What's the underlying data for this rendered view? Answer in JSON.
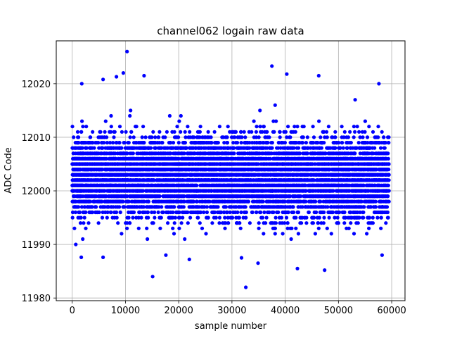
{
  "chart_data": {
    "type": "scatter",
    "title": "channel062 logain raw data",
    "xlabel": "sample number",
    "ylabel": "ADC Code",
    "xlim": [
      -3000,
      62500
    ],
    "ylim": [
      11979.5,
      12028
    ],
    "x_ticks": [
      0,
      10000,
      20000,
      30000,
      40000,
      50000,
      60000
    ],
    "x_tick_labels": [
      "0",
      "10000",
      "20000",
      "30000",
      "40000",
      "50000",
      "60000"
    ],
    "y_ticks": [
      11980,
      11990,
      12000,
      12010,
      12020
    ],
    "y_tick_labels": [
      "11980",
      "11990",
      "12000",
      "12010",
      "12020"
    ],
    "grid": true,
    "marker_color": "#0000ff",
    "marker": "circle",
    "n_samples_approx": 59500,
    "x_range": [
      0,
      59500
    ],
    "center": 12002.5,
    "stdev_approx": 3.5,
    "outliers": [
      {
        "x": 10300,
        "y": 12026
      },
      {
        "x": 9600,
        "y": 12022
      },
      {
        "x": 8300,
        "y": 12021.3
      },
      {
        "x": 13500,
        "y": 12021.5
      },
      {
        "x": 5800,
        "y": 12020.8
      },
      {
        "x": 37500,
        "y": 12023.3
      },
      {
        "x": 40300,
        "y": 12021.8
      },
      {
        "x": 46300,
        "y": 12021.5
      },
      {
        "x": 1800,
        "y": 12020
      },
      {
        "x": 57600,
        "y": 12020
      },
      {
        "x": 15100,
        "y": 11984
      },
      {
        "x": 32600,
        "y": 11982
      },
      {
        "x": 34900,
        "y": 11986.5
      },
      {
        "x": 31800,
        "y": 11987.5
      },
      {
        "x": 42300,
        "y": 11985.5
      },
      {
        "x": 47400,
        "y": 11985.2
      },
      {
        "x": 22000,
        "y": 11987.2
      },
      {
        "x": 1700,
        "y": 11987.6
      },
      {
        "x": 5800,
        "y": 11987.6
      },
      {
        "x": 58200,
        "y": 11988
      }
    ]
  }
}
